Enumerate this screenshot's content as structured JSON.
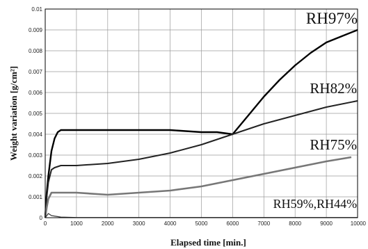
{
  "chart_data": {
    "type": "line",
    "xlabel": "Elapsed time [min.]",
    "ylabel": "Weight variation [g/cm²]",
    "xlim": [
      0,
      10000
    ],
    "ylim": [
      0,
      0.01
    ],
    "xticks": [
      0,
      1000,
      2000,
      3000,
      4000,
      5000,
      6000,
      7000,
      8000,
      9000,
      10000
    ],
    "yticks": [
      0,
      0.001,
      0.002,
      0.003,
      0.004,
      0.005,
      0.006,
      0.007,
      0.008,
      0.009,
      0.01
    ],
    "xtick_labels": [
      "0",
      "1000",
      "2000",
      "3000",
      "4000",
      "5000",
      "6000",
      "7000",
      "8000",
      "9000",
      "10000"
    ],
    "ytick_labels": [
      "0",
      "0.001",
      "0.002",
      "0.003",
      "0.004",
      "0.005",
      "0.006",
      "0.007",
      "0.008",
      "0.009",
      "0.01"
    ],
    "grid": true,
    "series": [
      {
        "name": "RH97%",
        "color": "#000000",
        "x": [
          0,
          50,
          100,
          200,
          300,
          400,
          500,
          700,
          1000,
          2000,
          3000,
          4000,
          5000,
          5500,
          6000,
          6500,
          7000,
          7500,
          8000,
          8500,
          9000,
          9500,
          10000
        ],
        "y": [
          0,
          0.0012,
          0.002,
          0.0032,
          0.0038,
          0.0041,
          0.0042,
          0.0042,
          0.0042,
          0.0042,
          0.0042,
          0.0042,
          0.0041,
          0.0041,
          0.004,
          0.0049,
          0.0058,
          0.0066,
          0.0073,
          0.0079,
          0.0084,
          0.0087,
          0.009
        ]
      },
      {
        "name": "RH82%",
        "color": "#222222",
        "x": [
          0,
          50,
          100,
          200,
          300,
          500,
          1000,
          2000,
          3000,
          4000,
          5000,
          6000,
          7000,
          8000,
          9000,
          10000
        ],
        "y": [
          0,
          0.001,
          0.0017,
          0.0023,
          0.0024,
          0.0025,
          0.0025,
          0.0026,
          0.0028,
          0.0031,
          0.0035,
          0.004,
          0.0045,
          0.0049,
          0.0053,
          0.0056
        ]
      },
      {
        "name": "RH75%",
        "color": "#777777",
        "x": [
          0,
          50,
          100,
          200,
          300,
          500,
          1000,
          2000,
          3000,
          4000,
          5000,
          6000,
          7000,
          8000,
          9000,
          9800
        ],
        "y": [
          0,
          0.0005,
          0.0009,
          0.0012,
          0.0012,
          0.0012,
          0.0012,
          0.0011,
          0.0012,
          0.0013,
          0.0015,
          0.0018,
          0.0021,
          0.0024,
          0.0027,
          0.0029
        ]
      },
      {
        "name": "RH59%,RH44%",
        "color": "#333333",
        "x": [
          0,
          100,
          200,
          500,
          1000,
          2000,
          5000,
          10000
        ],
        "y": [
          0,
          0.0002,
          0.0001,
          3e-05,
          1e-05,
          1e-05,
          1e-05,
          1e-05
        ]
      }
    ]
  }
}
